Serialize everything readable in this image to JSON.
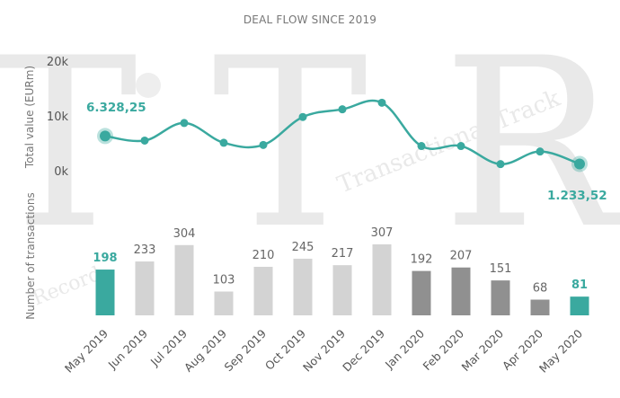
{
  "title": "DEAL FLOW SINCE 2019",
  "watermark": {
    "letters": "T T R",
    "line1": "Transactional Track",
    "line2": "Record"
  },
  "colors": {
    "teal": "#3aa99f",
    "bar_light": "#d3d3d3",
    "bar_dark": "#909090",
    "bar_highlight": "#3aa99f"
  },
  "chart_data": [
    {
      "type": "line",
      "ylabel": "Total value (EURm)",
      "yticks": [
        "20k",
        "10k",
        "0k"
      ],
      "ylim": [
        0,
        20000
      ],
      "categories": [
        "May 2019",
        "Jun 2019",
        "Jul 2019",
        "Aug 2019",
        "Sep 2019",
        "Oct 2019",
        "Nov 2019",
        "Dec 2019",
        "Jan 2020",
        "Feb 2020",
        "Mar 2020",
        "Apr 2020",
        "May 2020"
      ],
      "values": [
        6328.25,
        5500,
        8700,
        5100,
        4700,
        9800,
        11200,
        12400,
        4500,
        4500,
        1200,
        3500,
        1233.52
      ],
      "labels": {
        "first": "6.328,25",
        "last": "1.233,52"
      },
      "grid": false
    },
    {
      "type": "bar",
      "ylabel": "Number of transactions",
      "categories": [
        "May 2019",
        "Jun 2019",
        "Jul 2019",
        "Aug 2019",
        "Sep 2019",
        "Oct 2019",
        "Nov 2019",
        "Dec 2019",
        "Jan 2020",
        "Feb 2020",
        "Mar 2020",
        "Apr 2020",
        "May 2020"
      ],
      "values": [
        198,
        233,
        304,
        103,
        210,
        245,
        217,
        307,
        192,
        207,
        151,
        68,
        81
      ],
      "bar_colors": [
        "#3aa99f",
        "#d3d3d3",
        "#d3d3d3",
        "#d3d3d3",
        "#d3d3d3",
        "#d3d3d3",
        "#d3d3d3",
        "#d3d3d3",
        "#909090",
        "#909090",
        "#909090",
        "#909090",
        "#3aa99f"
      ],
      "highlighted": [
        0,
        12
      ]
    }
  ]
}
